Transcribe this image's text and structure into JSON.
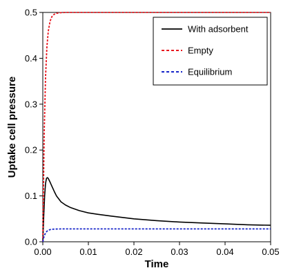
{
  "chart_data": {
    "type": "line",
    "title": "",
    "xlabel": "Time",
    "ylabel": "Uptake cell pressure",
    "xlim": [
      0,
      0.05
    ],
    "ylim": [
      0,
      0.5
    ],
    "xticks": [
      "0.00",
      "0.01",
      "0.02",
      "0.03",
      "0.04",
      "0.05"
    ],
    "yticks": [
      "0.0",
      "0.1",
      "0.2",
      "0.3",
      "0.4",
      "0.5"
    ],
    "grid": false,
    "legend_position": "top-right",
    "series": [
      {
        "name": "With adsorbent",
        "color": "#000000",
        "dash": "solid",
        "x": [
          0,
          0.0002,
          0.0004,
          0.0006,
          0.0008,
          0.001,
          0.0012,
          0.0015,
          0.002,
          0.0025,
          0.003,
          0.004,
          0.005,
          0.006,
          0.008,
          0.01,
          0.012,
          0.015,
          0.02,
          0.025,
          0.03,
          0.035,
          0.04,
          0.045,
          0.05
        ],
        "y": [
          0,
          0.055,
          0.1,
          0.127,
          0.138,
          0.14,
          0.138,
          0.132,
          0.121,
          0.11,
          0.1,
          0.087,
          0.08,
          0.075,
          0.068,
          0.063,
          0.06,
          0.056,
          0.05,
          0.046,
          0.043,
          0.041,
          0.039,
          0.037,
          0.036
        ]
      },
      {
        "name": "Empty",
        "color": "#e8141c",
        "dash": "dashed",
        "x": [
          0,
          0.0003,
          0.0006,
          0.0009,
          0.0012,
          0.0016,
          0.002,
          0.0025,
          0.003,
          0.0035,
          0.004,
          0.005,
          0.05
        ],
        "y": [
          0,
          0.235,
          0.359,
          0.425,
          0.459,
          0.481,
          0.491,
          0.496,
          0.498,
          0.499,
          0.4995,
          0.5,
          0.5
        ]
      },
      {
        "name": "Equilibrium",
        "color": "#1423c8",
        "dash": "dashed",
        "x": [
          0,
          0.0003,
          0.0006,
          0.0009,
          0.0012,
          0.0016,
          0.002,
          0.0025,
          0.003,
          0.004,
          0.05
        ],
        "y": [
          0,
          0.013,
          0.019,
          0.023,
          0.025,
          0.0265,
          0.0272,
          0.0276,
          0.0278,
          0.028,
          0.028
        ]
      }
    ]
  }
}
